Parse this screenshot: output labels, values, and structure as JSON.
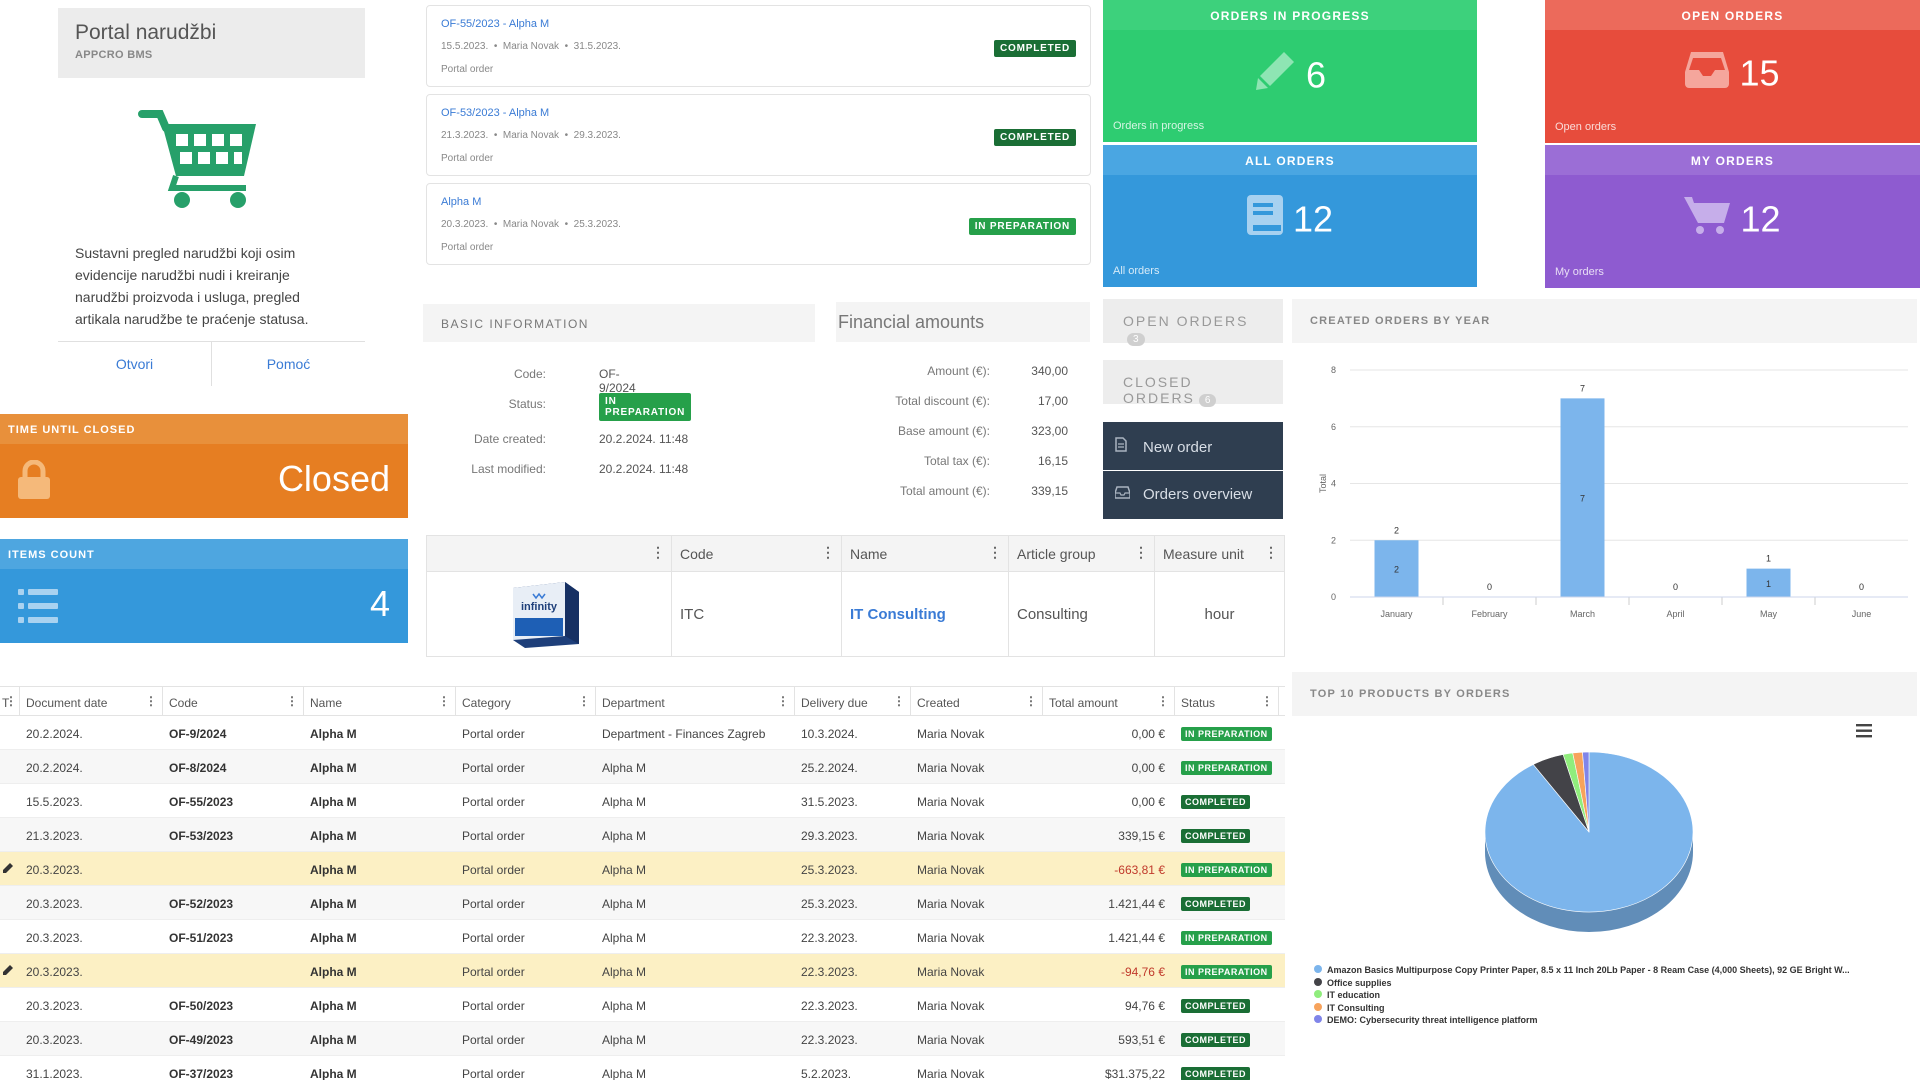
{
  "portal": {
    "title": "Portal narudžbi",
    "subtitle": "APPCRO BMS",
    "description": "Sustavni pregled narudžbi koji osim evidencije narudžbi nudi i kreiranje narudžbi proizvoda i usluga, pregled artikala narudžbe te praćenje statusa.",
    "open_label": "Otvori",
    "help_label": "Pomoć"
  },
  "time_until_closed": {
    "label": "TIME UNTIL CLOSED",
    "value": "Closed"
  },
  "items_count": {
    "label": "ITEMS COUNT",
    "value": "4"
  },
  "documents": [
    {
      "title": "OF-55/2023 - Alpha M",
      "date": "15.5.2023.",
      "user": "Maria Novak",
      "due": "31.5.2023.",
      "type": "Portal order",
      "status": "COMPLETED"
    },
    {
      "title": "OF-53/2023 - Alpha M",
      "date": "21.3.2023.",
      "user": "Maria Novak",
      "due": "29.3.2023.",
      "type": "Portal order",
      "status": "COMPLETED"
    },
    {
      "title": "Alpha M",
      "date": "20.3.2023.",
      "user": "Maria Novak",
      "due": "25.3.2023.",
      "type": "Portal order",
      "status": "IN PREPARATION"
    }
  ],
  "basic_info": {
    "heading": "BASIC INFORMATION",
    "code_label": "Code:",
    "code": "OF-9/2024",
    "status_label": "Status:",
    "status": "IN PREPARATION",
    "created_label": "Date created:",
    "created": "20.2.2024. 11:48",
    "modified_label": "Last modified:",
    "modified": "20.2.2024. 11:48"
  },
  "financial": {
    "heading": "Financial amounts",
    "rows": [
      {
        "label": "Amount (€):",
        "value": "340,00"
      },
      {
        "label": "Total discount (€):",
        "value": "17,00"
      },
      {
        "label": "Base amount (€):",
        "value": "323,00"
      },
      {
        "label": "Total tax (€):",
        "value": "16,15"
      },
      {
        "label": "Total amount (€):",
        "value": "339,15"
      }
    ]
  },
  "tiles": {
    "in_progress": {
      "head": "ORDERS IN PROGRESS",
      "value": "6",
      "foot": "Orders in progress",
      "color": "#2ecc71"
    },
    "open": {
      "head": "OPEN ORDERS",
      "value": "15",
      "foot": "Open orders",
      "color": "#e74c3c"
    },
    "all": {
      "head": "ALL ORDERS",
      "value": "12",
      "foot": "All orders",
      "color": "#3498db"
    },
    "mine": {
      "head": "MY ORDERS",
      "value": "12",
      "foot": "My orders",
      "color": "#8e5bd0"
    }
  },
  "quick": {
    "open_orders": "OPEN ORDERS",
    "open_count": "3",
    "closed_orders": "CLOSED ORDERS",
    "closed_count": "6",
    "new_order": "New order",
    "orders_overview": "Orders overview"
  },
  "item_grid": {
    "headers": [
      "",
      "Code",
      "Name",
      "Article group",
      "Measure unit"
    ],
    "row": {
      "code": "ITC",
      "name": "IT Consulting",
      "group": "Consulting",
      "unit": "hour",
      "image_text": "infinity"
    }
  },
  "table": {
    "headers": [
      "T",
      "Document date",
      "Code",
      "Name",
      "Category",
      "Department",
      "Delivery due",
      "Created",
      "Total amount",
      "Status"
    ],
    "rows": [
      {
        "date": "20.2.2024.",
        "code": "OF-9/2024",
        "name": "Alpha M",
        "cat": "Portal order",
        "dept": "Department - Finances Zagreb",
        "due": "10.3.2024.",
        "created": "Maria Novak",
        "amount": "0,00 €",
        "status": "IN PREPARATION",
        "hl": false,
        "edit": false
      },
      {
        "date": "20.2.2024.",
        "code": "OF-8/2024",
        "name": "Alpha M",
        "cat": "Portal order",
        "dept": "Alpha M",
        "due": "25.2.2024.",
        "created": "Maria Novak",
        "amount": "0,00 €",
        "status": "IN PREPARATION",
        "hl": false,
        "edit": false
      },
      {
        "date": "15.5.2023.",
        "code": "OF-55/2023",
        "name": "Alpha M",
        "cat": "Portal order",
        "dept": "Alpha M",
        "due": "31.5.2023.",
        "created": "Maria Novak",
        "amount": "0,00 €",
        "status": "COMPLETED",
        "hl": false,
        "edit": false
      },
      {
        "date": "21.3.2023.",
        "code": "OF-53/2023",
        "name": "Alpha M",
        "cat": "Portal order",
        "dept": "Alpha M",
        "due": "29.3.2023.",
        "created": "Maria Novak",
        "amount": "339,15 €",
        "status": "COMPLETED",
        "hl": false,
        "edit": false
      },
      {
        "date": "20.3.2023.",
        "code": "",
        "name": "Alpha M",
        "cat": "Portal order",
        "dept": "Alpha M",
        "due": "25.3.2023.",
        "created": "Maria Novak",
        "amount": "-663,81 €",
        "status": "IN PREPARATION",
        "hl": true,
        "edit": true
      },
      {
        "date": "20.3.2023.",
        "code": "OF-52/2023",
        "name": "Alpha M",
        "cat": "Portal order",
        "dept": "Alpha M",
        "due": "25.3.2023.",
        "created": "Maria Novak",
        "amount": "1.421,44 €",
        "status": "COMPLETED",
        "hl": false,
        "edit": false
      },
      {
        "date": "20.3.2023.",
        "code": "OF-51/2023",
        "name": "Alpha M",
        "cat": "Portal order",
        "dept": "Alpha M",
        "due": "22.3.2023.",
        "created": "Maria Novak",
        "amount": "1.421,44 €",
        "status": "IN PREPARATION",
        "hl": false,
        "edit": false
      },
      {
        "date": "20.3.2023.",
        "code": "",
        "name": "Alpha M",
        "cat": "Portal order",
        "dept": "Alpha M",
        "due": "22.3.2023.",
        "created": "Maria Novak",
        "amount": "-94,76 €",
        "status": "IN PREPARATION",
        "hl": true,
        "edit": true
      },
      {
        "date": "20.3.2023.",
        "code": "OF-50/2023",
        "name": "Alpha M",
        "cat": "Portal order",
        "dept": "Alpha M",
        "due": "22.3.2023.",
        "created": "Maria Novak",
        "amount": "94,76 €",
        "status": "COMPLETED",
        "hl": false,
        "edit": false
      },
      {
        "date": "20.3.2023.",
        "code": "OF-49/2023",
        "name": "Alpha M",
        "cat": "Portal order",
        "dept": "Alpha M",
        "due": "22.3.2023.",
        "created": "Maria Novak",
        "amount": "593,51 €",
        "status": "COMPLETED",
        "hl": false,
        "edit": false
      },
      {
        "date": "31.1.2023.",
        "code": "OF-37/2023",
        "name": "Alpha M",
        "cat": "Portal order",
        "dept": "Alpha M",
        "due": "5.2.2023.",
        "created": "Maria Novak",
        "amount": "$31.375,22",
        "status": "COMPLETED",
        "hl": false,
        "edit": false
      }
    ]
  },
  "chart_data": [
    {
      "type": "bar",
      "title": "CREATED ORDERS BY YEAR",
      "categories": [
        "January",
        "February",
        "March",
        "April",
        "May",
        "June"
      ],
      "values": [
        2,
        0,
        7,
        0,
        1,
        0
      ],
      "ylabel": "Total",
      "ylim": [
        0,
        8
      ],
      "yticks": [
        0,
        2,
        4,
        6,
        8
      ],
      "color": "#7cb5ec"
    },
    {
      "type": "pie",
      "title": "TOP 10 PRODUCTS BY ORDERS",
      "labels": [
        "Amazon Basics Multipurpose Copy Printer Paper, 8.5 x 11 Inch 20Lb Paper - 8 Ream Case (4,000 Sheets), 92 GE Bright W...",
        "Office supplies",
        "IT education",
        "IT Consulting",
        "DEMO: Cybersecurity threat intelligence platform"
      ],
      "values": [
        91,
        5,
        1.5,
        1.5,
        1
      ],
      "colors": [
        "#7cb5ec",
        "#434348",
        "#90ed7d",
        "#f7a35c",
        "#8085e9"
      ]
    }
  ]
}
